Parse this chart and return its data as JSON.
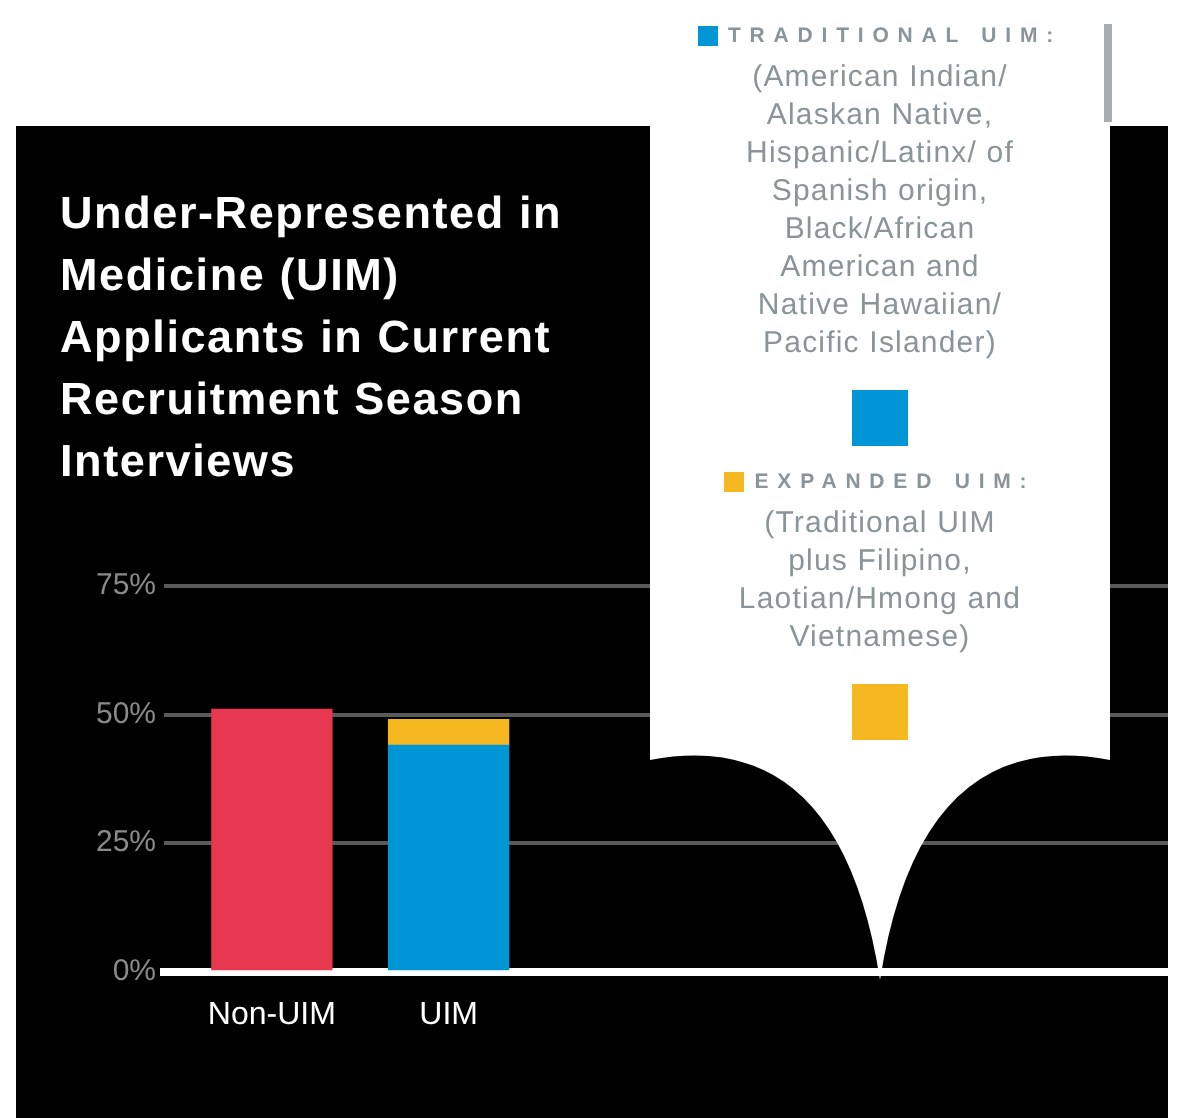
{
  "chart_data": {
    "type": "bar",
    "title": "Under-Represented in Medicine (UIM) Applicants in Current Recruitment Season Interviews",
    "categories": [
      "Non-UIM",
      "UIM"
    ],
    "stacked": true,
    "ylim": [
      0,
      75
    ],
    "yticks": [
      {
        "value": 0,
        "label": "0%"
      },
      {
        "value": 25,
        "label": "25%"
      },
      {
        "value": 50,
        "label": "50%"
      },
      {
        "value": 75,
        "label": "75%"
      }
    ],
    "grid": "y",
    "legend": "top right",
    "series": [
      {
        "color": "#e8384f",
        "values": [
          51,
          null
        ]
      },
      {
        "name": "TRADITIONAL UIM:",
        "color": "#0096d6",
        "values": [
          null,
          44
        ]
      },
      {
        "name": "EXPANDED UIM:",
        "color": "#f5b820",
        "values": [
          null,
          5
        ]
      }
    ],
    "annotations": [
      "(American Indian/ Alaskan Native, Hispanic/Latinx/ of Spanish origin, Black/African American and Native Hawaiian/ Pacific Islander)",
      "(Traditional UIM plus Filipino, Laotian/Hmong and Vietnamese)"
    ]
  }
}
